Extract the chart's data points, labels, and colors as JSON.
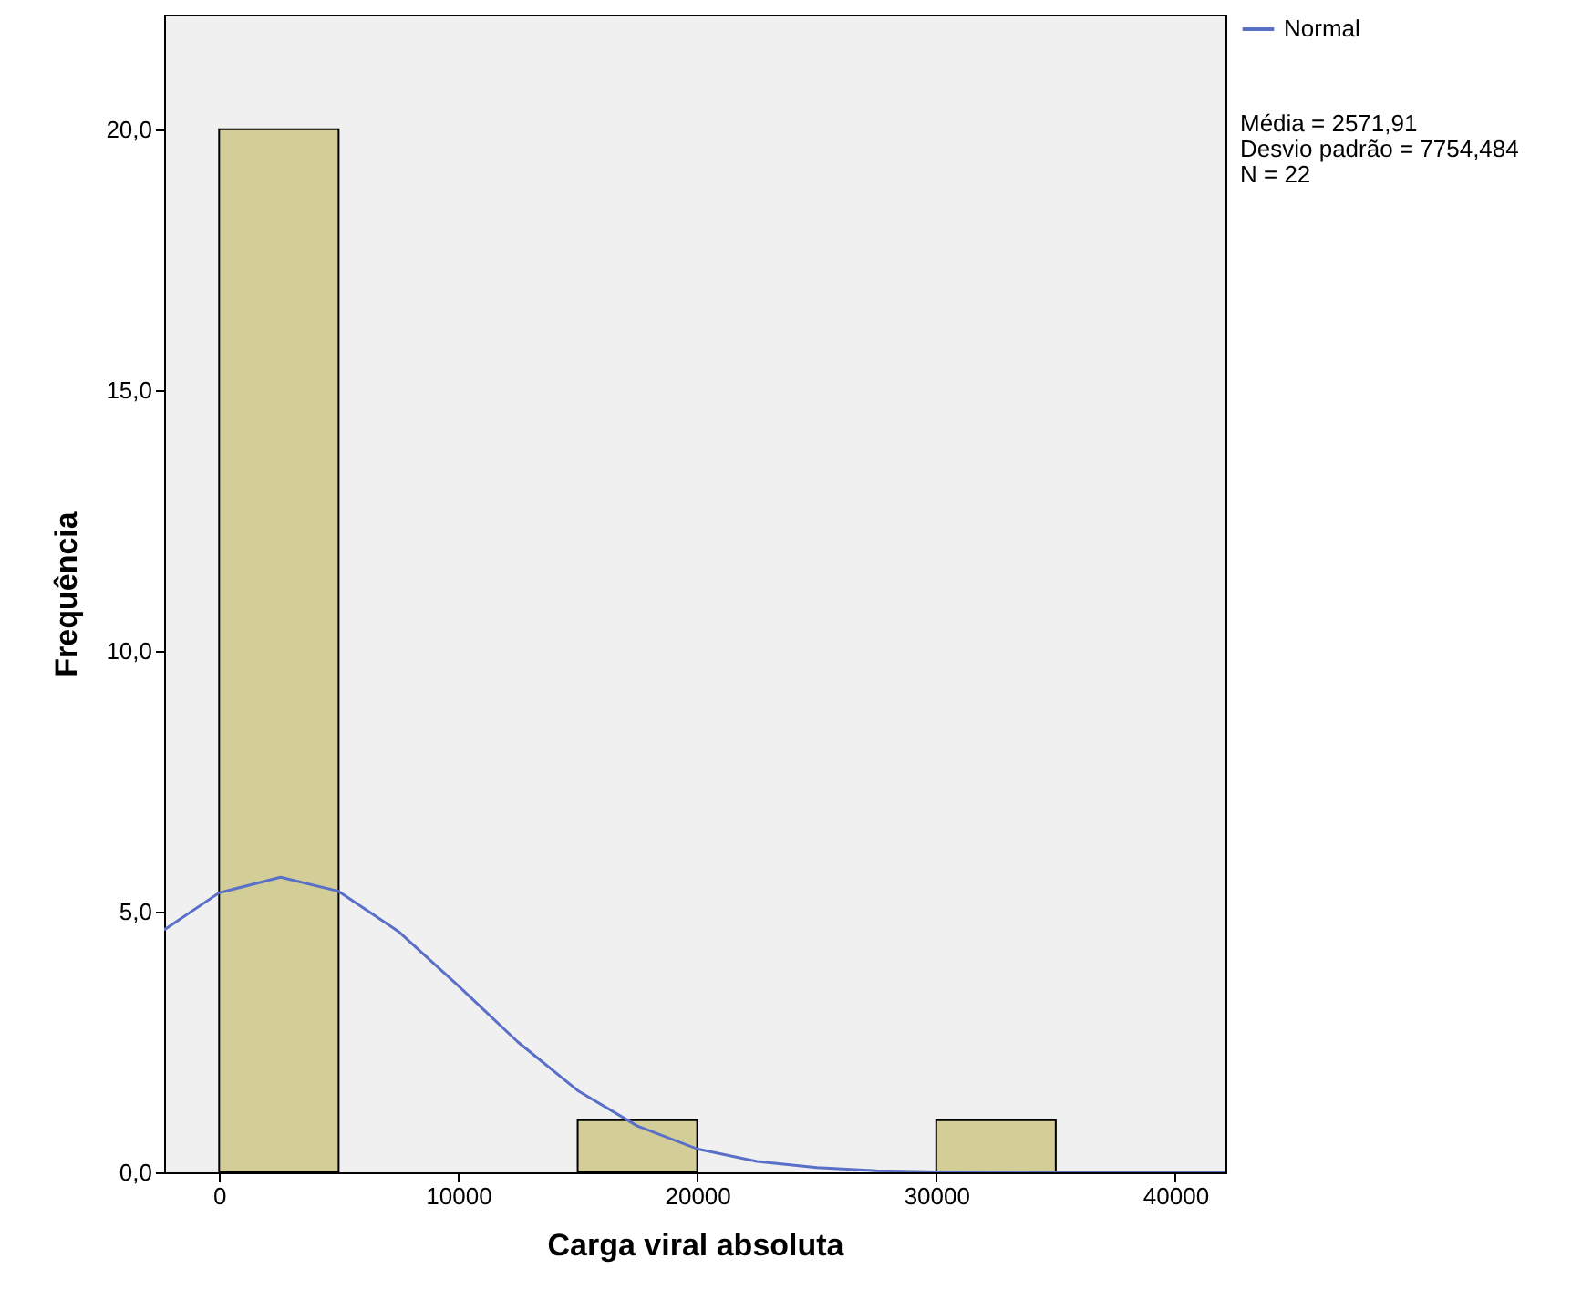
{
  "chart_data": {
    "type": "histogram",
    "xlabel": "Carga viral absoluta",
    "ylabel": "Frequência",
    "bins": [
      0,
      5000,
      10000,
      15000,
      20000,
      25000,
      30000,
      35000
    ],
    "values": [
      20,
      0,
      0,
      1,
      0,
      0,
      1
    ],
    "color": "#d3ce97",
    "series": [
      {
        "type": "line",
        "name": "Normal",
        "color": "#5a6fc7",
        "x": [
          -2300,
          0,
          2572,
          5000,
          7500,
          10000,
          12500,
          15000,
          17500,
          20000,
          22500,
          25000,
          27500,
          30000,
          35000,
          42100
        ],
        "values": [
          4.65,
          5.36,
          5.66,
          5.39,
          4.62,
          3.58,
          2.5,
          1.57,
          0.89,
          0.45,
          0.21,
          0.09,
          0.03,
          0.01,
          0,
          0
        ]
      }
    ],
    "xlim": [
      -2300,
      42100
    ],
    "xticks": [
      0,
      10000,
      20000,
      30000,
      40000
    ],
    "ylim": [
      0,
      22.2
    ],
    "yticks": [
      {
        "value": 0,
        "label": "0,0"
      },
      {
        "value": 5,
        "label": "5,0"
      },
      {
        "value": 10,
        "label": "10,0"
      },
      {
        "value": 15,
        "label": "15,0"
      },
      {
        "value": 20,
        "label": "20,0"
      }
    ],
    "legend": "top right",
    "grid": false,
    "annotations": [
      "Média = 2571,91",
      "Desvio padrão = 7754,484",
      "N = 22"
    ]
  }
}
